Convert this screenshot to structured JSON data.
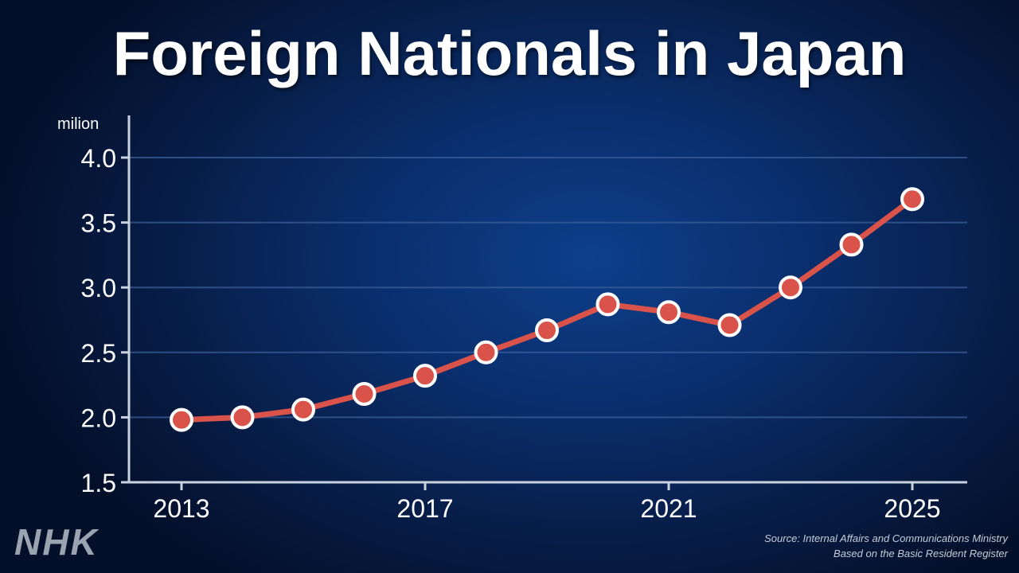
{
  "title": "Foreign Nationals in Japan",
  "logo": "NHK",
  "source_line1": "Source: Internal Affairs and Communications Ministry",
  "source_line2": "Based on the Basic Resident Register",
  "colors": {
    "line": "#d9534a",
    "marker": "#d9534a",
    "marker_outline": "#ffffff",
    "grid": "#3b5f99"
  },
  "chart_data": {
    "type": "line",
    "title": "Foreign Nationals in Japan",
    "ylabel": "milion",
    "xlabel": "",
    "x": [
      2013,
      2014,
      2015,
      2016,
      2017,
      2018,
      2019,
      2020,
      2021,
      2022,
      2023,
      2024,
      2025
    ],
    "x_tick_labels": [
      "2013",
      "2017",
      "2021",
      "2025"
    ],
    "x_tick_values": [
      2013,
      2017,
      2021,
      2025
    ],
    "y_tick_labels": [
      "1.5",
      "2.0",
      "2.5",
      "3.0",
      "3.5",
      "4.0"
    ],
    "y_tick_values": [
      1.5,
      2.0,
      2.5,
      3.0,
      3.5,
      4.0
    ],
    "ylim": [
      1.5,
      4.0
    ],
    "xlim": [
      2013,
      2025
    ],
    "series": [
      {
        "values": [
          1.98,
          2.0,
          2.06,
          2.18,
          2.32,
          2.5,
          2.67,
          2.87,
          2.81,
          2.71,
          3.0,
          3.33,
          3.68
        ]
      }
    ],
    "grid": true,
    "legend": "none"
  }
}
